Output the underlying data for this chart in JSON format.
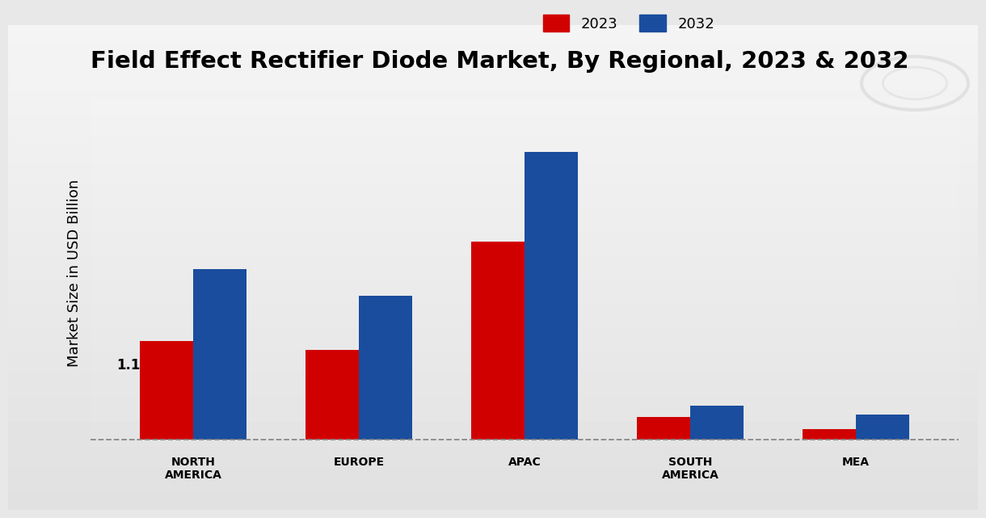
{
  "title": "Field Effect Rectifier Diode Market, By Regional, 2023 & 2032",
  "ylabel": "Market Size in USD Billion",
  "categories": [
    "NORTH\nAMERICA",
    "EUROPE",
    "APAC",
    "SOUTH\nAMERICA",
    "MEA"
  ],
  "values_2023": [
    1.1,
    1.0,
    2.2,
    0.25,
    0.12
  ],
  "values_2032": [
    1.9,
    1.6,
    3.2,
    0.38,
    0.28
  ],
  "color_2023": "#d10000",
  "color_2032": "#1a4d9e",
  "annotation_text": "1.1",
  "annotation_region_idx": 0,
  "bar_width": 0.32,
  "legend_labels": [
    "2023",
    "2032"
  ],
  "title_fontsize": 21,
  "axis_label_fontsize": 13,
  "tick_fontsize": 10,
  "legend_fontsize": 13,
  "ylim_min": -0.08,
  "ylim_max": 3.8,
  "bg_color_light": "#f0f0f0",
  "bg_color_dark": "#d8d8d8",
  "dashed_line_y": 0.0
}
